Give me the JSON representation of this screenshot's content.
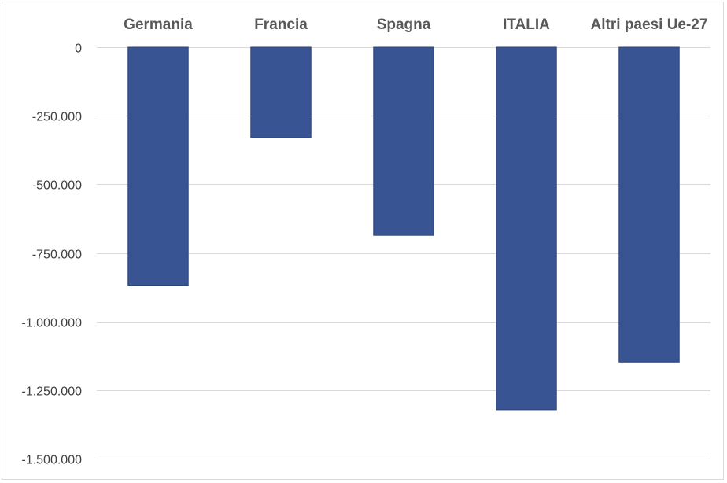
{
  "chart_data": {
    "type": "bar",
    "title": "",
    "xlabel": "",
    "ylabel": "",
    "categories": [
      "Germania",
      "Francia",
      "Spagna",
      "ITALIA",
      "Altri paesi Ue-27"
    ],
    "values": [
      -868000,
      -330000,
      -686000,
      -1322000,
      -1148000
    ],
    "ylim": [
      -1500000,
      0
    ],
    "yticks": [
      0,
      -250000,
      -500000,
      -750000,
      -1000000,
      -1250000,
      -1500000
    ],
    "ytick_labels": [
      "0",
      "-250.000",
      "-500.000",
      "-750.000",
      "-1.000.000",
      "-1.250.000",
      "-1.500.000"
    ],
    "category_axis_position": "top",
    "grid": true,
    "legend": "none",
    "bar_color": "#385492",
    "grid_color": "#d9d9d9"
  }
}
